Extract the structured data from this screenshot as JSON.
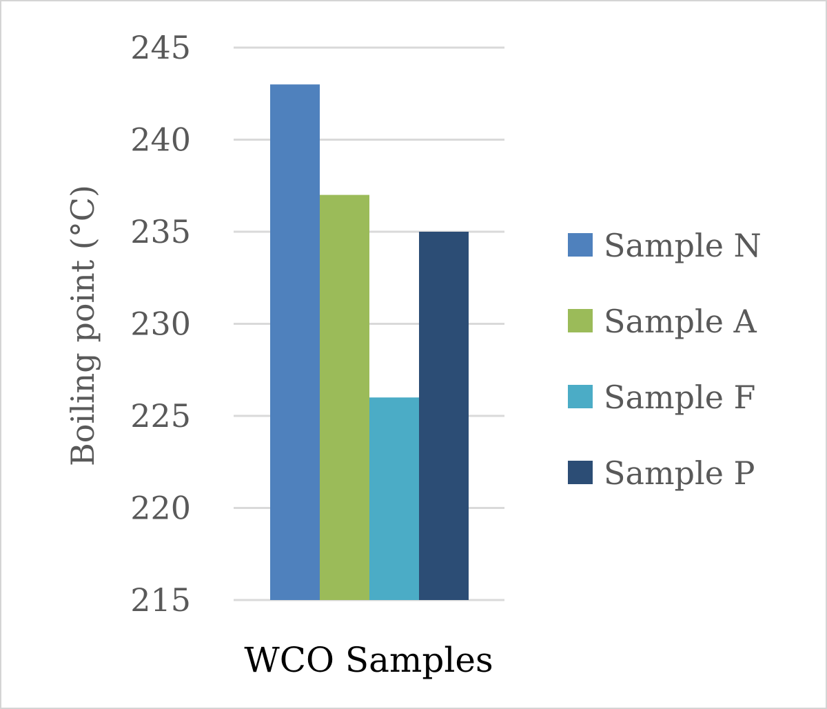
{
  "chart_data": {
    "type": "bar",
    "categories": [
      "WCO Samples"
    ],
    "series": [
      {
        "name": "Sample N",
        "values": [
          243
        ],
        "color": "#4f81bd"
      },
      {
        "name": "Sample A",
        "values": [
          237
        ],
        "color": "#9bbb59"
      },
      {
        "name": "Sample F",
        "values": [
          226
        ],
        "color": "#4bacc6"
      },
      {
        "name": "Sample P",
        "values": [
          235
        ],
        "color": "#2c4d75"
      }
    ],
    "title": "",
    "xlabel": "",
    "ylabel": "Boiling point (°C)",
    "ylim": [
      215,
      245
    ],
    "yticks": [
      "215",
      "220",
      "225",
      "230",
      "235",
      "240",
      "245"
    ],
    "grid": true,
    "legend_position": "right"
  }
}
